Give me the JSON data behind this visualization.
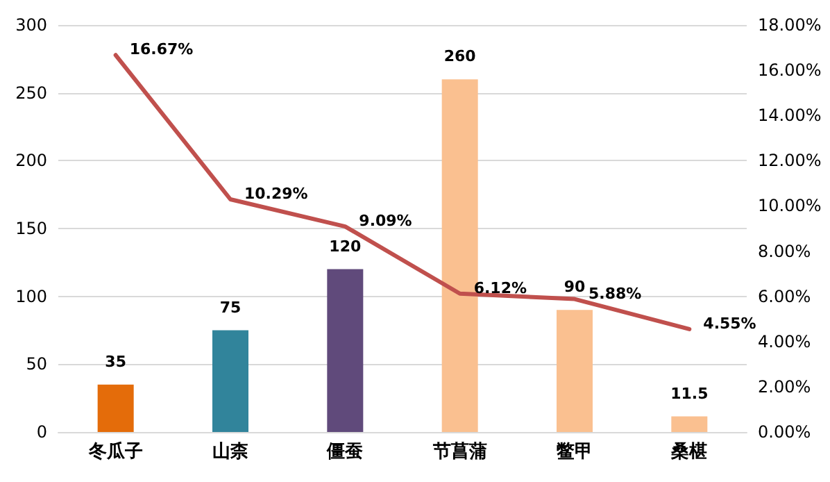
{
  "chart_data": {
    "type": "bar",
    "categories": [
      "冬瓜子",
      "山柰",
      "僵蚕",
      "节菖蒲",
      "鳖甲",
      "桑椹"
    ],
    "series": [
      {
        "colors": [
          "#e46c0a",
          "#31849b",
          "#604a7b",
          "#fac090",
          "#fac090",
          "#fac090"
        ],
        "values": [
          35,
          75,
          120,
          260,
          90,
          11.5
        ]
      },
      {
        "type": "line",
        "axis": "y2",
        "color": "#c0504d",
        "values": [
          16.67,
          10.29,
          9.09,
          6.12,
          5.88,
          4.55
        ],
        "value_labels": [
          "16.67%",
          "10.29%",
          "9.09%",
          "6.12%",
          "5.88%",
          "4.55%"
        ]
      }
    ],
    "data_labels": true,
    "ylim": [
      0,
      300
    ],
    "yticks": [
      0,
      50,
      100,
      150,
      200,
      250,
      300
    ],
    "y2lim": [
      0,
      18
    ],
    "y2ticks": [
      {
        "value": 0,
        "label": "0.00%"
      },
      {
        "value": 2,
        "label": "2.00%"
      },
      {
        "value": 4,
        "label": "4.00%"
      },
      {
        "value": 6,
        "label": "6.00%"
      },
      {
        "value": 8,
        "label": "8.00%"
      },
      {
        "value": 10,
        "label": "10.00%"
      },
      {
        "value": 12,
        "label": "12.00%"
      },
      {
        "value": 14,
        "label": "14.00%"
      },
      {
        "value": 16,
        "label": "16.00%"
      },
      {
        "value": 18,
        "label": "18.00%"
      }
    ],
    "grid": true,
    "marker": "none",
    "line_style": "solid"
  }
}
